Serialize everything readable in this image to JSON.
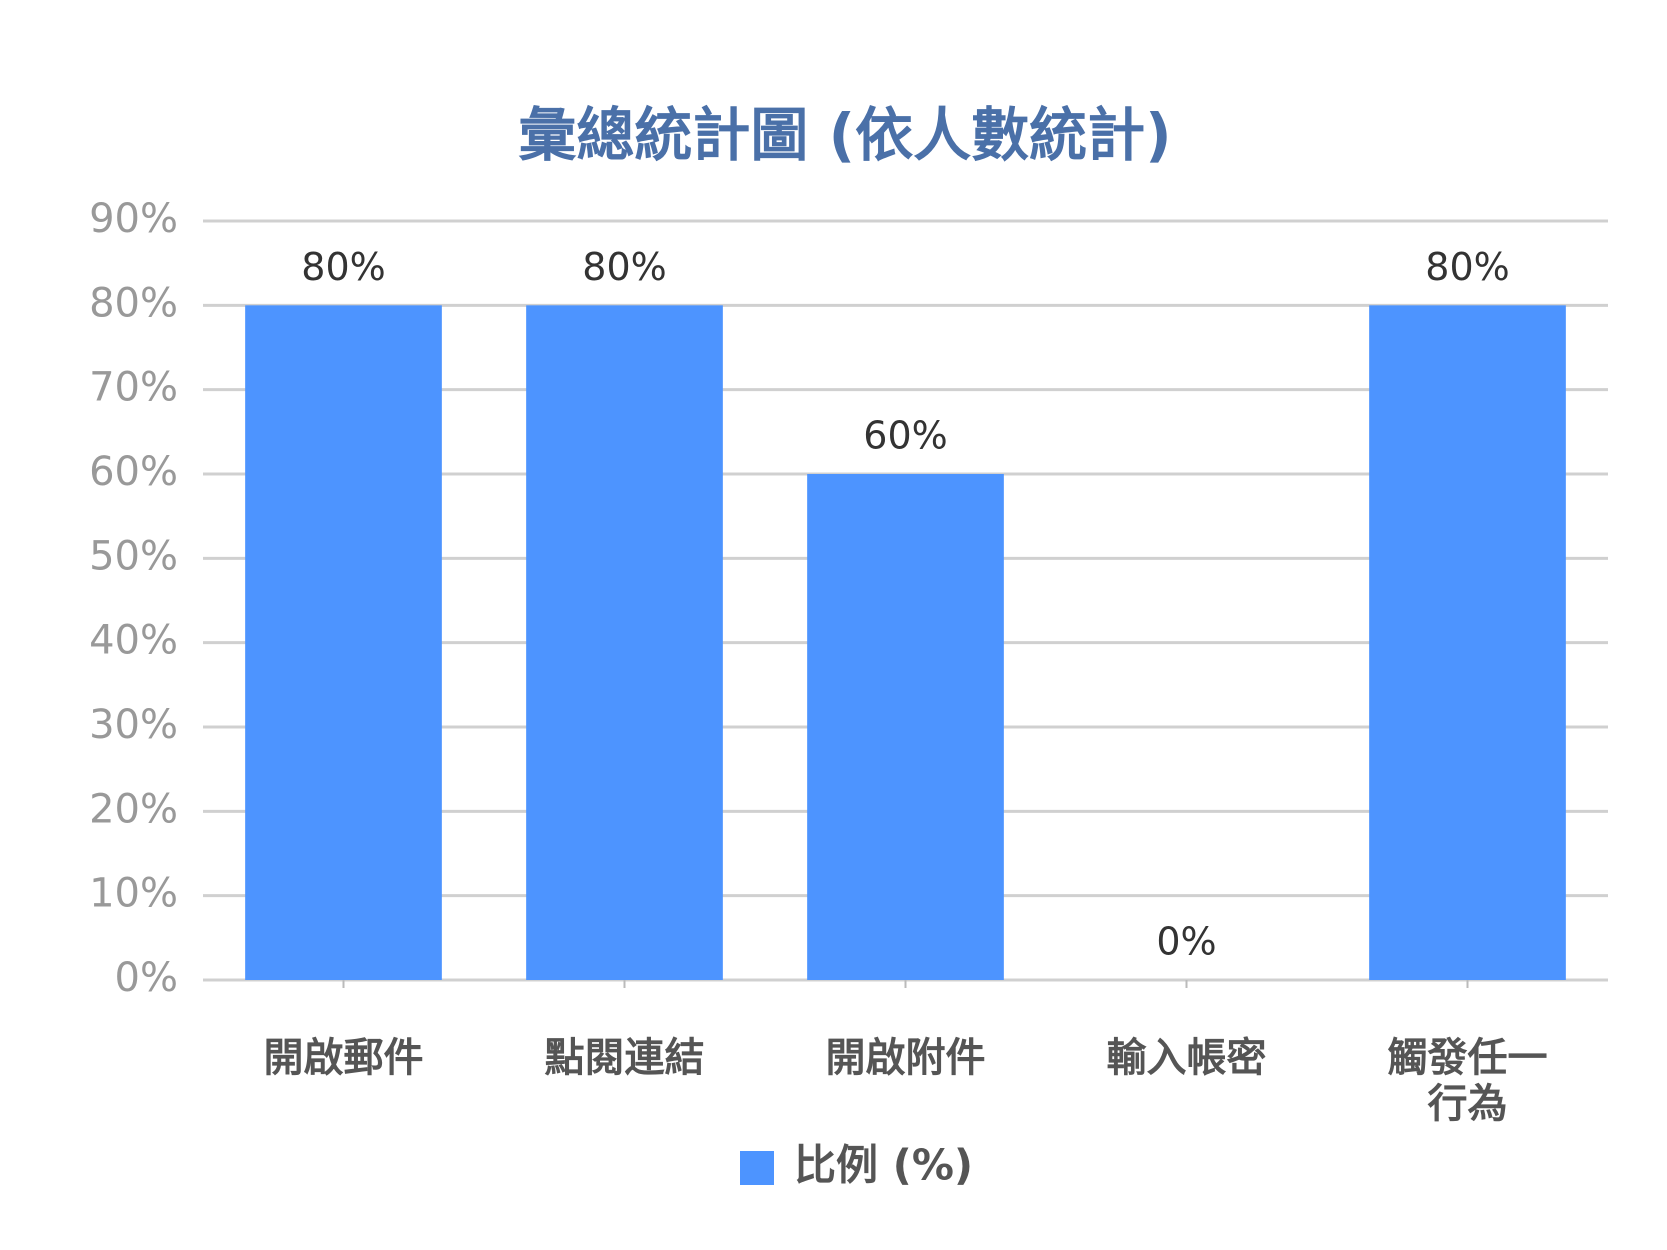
{
  "chart_data": {
    "type": "bar",
    "title": "彙總統計圖 (依人數統計)",
    "categories": [
      "開啟郵件",
      "點閱連結",
      "開啟附件",
      "輸入帳密",
      "觸發任一行為"
    ],
    "series": [
      {
        "name": "比例 (%)",
        "color": "#4d94ff",
        "values": [
          80,
          80,
          60,
          0,
          80
        ],
        "value_labels": [
          "80%",
          "80%",
          "60%",
          "0%",
          "80%"
        ]
      }
    ],
    "ylim": [
      0,
      90
    ],
    "yticks": [
      {
        "value": 0,
        "label": "0%"
      },
      {
        "value": 10,
        "label": "10%"
      },
      {
        "value": 20,
        "label": "20%"
      },
      {
        "value": 30,
        "label": "30%"
      },
      {
        "value": 40,
        "label": "40%"
      },
      {
        "value": 50,
        "label": "50%"
      },
      {
        "value": 60,
        "label": "60%"
      },
      {
        "value": 70,
        "label": "70%"
      },
      {
        "value": 80,
        "label": "80%"
      },
      {
        "value": 90,
        "label": "90%"
      }
    ],
    "grid": true,
    "legend": "bottom"
  }
}
